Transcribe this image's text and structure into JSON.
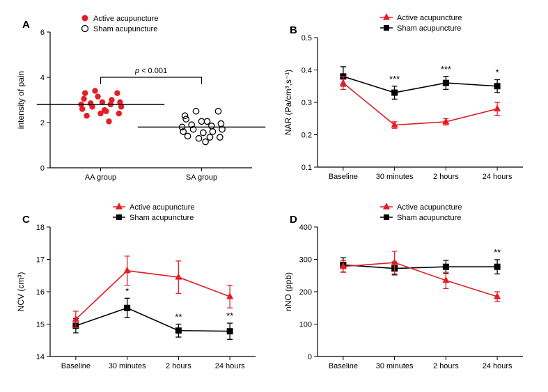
{
  "colors": {
    "active": "#e31e24",
    "sham": "#000000",
    "bg": "#ffffff"
  },
  "legend": {
    "active": "Active acupuncture",
    "sham": "Sham acupuncture"
  },
  "panelA": {
    "label": "A",
    "ylabel": "intensity of pain",
    "ylim": [
      0,
      6
    ],
    "ystep": 2,
    "categories": [
      "AA group",
      "SA group"
    ],
    "sig_text": "p < 0.001",
    "mean_active": 2.8,
    "mean_sham": 1.8,
    "points_active": [
      {
        "x": -0.3,
        "y": 3.05
      },
      {
        "x": -0.1,
        "y": 3.4
      },
      {
        "x": 0.1,
        "y": 2.5
      },
      {
        "x": 0.3,
        "y": 3.3
      },
      {
        "x": -0.35,
        "y": 2.8
      },
      {
        "x": -0.18,
        "y": 2.85
      },
      {
        "x": 0.0,
        "y": 2.4
      },
      {
        "x": 0.18,
        "y": 2.8
      },
      {
        "x": 0.35,
        "y": 2.9
      },
      {
        "x": -0.33,
        "y": 2.6
      },
      {
        "x": -0.15,
        "y": 2.7
      },
      {
        "x": 0.03,
        "y": 2.9
      },
      {
        "x": 0.2,
        "y": 3.0
      },
      {
        "x": 0.37,
        "y": 2.7
      },
      {
        "x": -0.25,
        "y": 2.3
      },
      {
        "x": -0.05,
        "y": 3.15
      },
      {
        "x": 0.15,
        "y": 2.05
      },
      {
        "x": 0.33,
        "y": 2.4
      },
      {
        "x": -0.28,
        "y": 3.3
      },
      {
        "x": 0.07,
        "y": 2.55
      }
    ],
    "points_sham": [
      {
        "x": -0.3,
        "y": 2.3
      },
      {
        "x": -0.1,
        "y": 2.5
      },
      {
        "x": 0.1,
        "y": 2.05
      },
      {
        "x": 0.3,
        "y": 2.5
      },
      {
        "x": -0.35,
        "y": 1.8
      },
      {
        "x": -0.18,
        "y": 1.9
      },
      {
        "x": 0.0,
        "y": 2.05
      },
      {
        "x": 0.18,
        "y": 1.85
      },
      {
        "x": 0.35,
        "y": 1.95
      },
      {
        "x": -0.33,
        "y": 1.6
      },
      {
        "x": -0.15,
        "y": 1.7
      },
      {
        "x": 0.03,
        "y": 1.55
      },
      {
        "x": 0.2,
        "y": 1.6
      },
      {
        "x": 0.37,
        "y": 1.7
      },
      {
        "x": -0.25,
        "y": 1.4
      },
      {
        "x": -0.05,
        "y": 1.3
      },
      {
        "x": 0.15,
        "y": 1.35
      },
      {
        "x": 0.33,
        "y": 1.35
      },
      {
        "x": -0.28,
        "y": 2.15
      },
      {
        "x": 0.07,
        "y": 1.15
      }
    ]
  },
  "panelB": {
    "label": "B",
    "ylabel": "NAR  (Pa/cm³,s⁻¹)",
    "ylim": [
      0.1,
      0.5
    ],
    "ystep": 0.1,
    "xcats": [
      "Baseline",
      "30 minutes",
      "2 hours",
      "24 hours"
    ],
    "active": {
      "y": [
        0.36,
        0.23,
        0.24,
        0.28
      ],
      "err": [
        0.02,
        0.01,
        0.01,
        0.02
      ]
    },
    "sham": {
      "y": [
        0.38,
        0.33,
        0.36,
        0.35
      ],
      "err": [
        0.03,
        0.02,
        0.02,
        0.02
      ]
    },
    "sig": {
      "1": "***",
      "2": "***",
      "3": "*"
    }
  },
  "panelC": {
    "label": "C",
    "ylabel": "NCV (cm³)",
    "ylim": [
      14,
      18
    ],
    "ystep": 1,
    "xcats": [
      "Baseline",
      "30 minutes",
      "2 hours",
      "24 hours"
    ],
    "active": {
      "y": [
        15.15,
        16.65,
        16.45,
        15.85
      ],
      "err": [
        0.25,
        0.45,
        0.5,
        0.35
      ]
    },
    "sham": {
      "y": [
        14.95,
        15.5,
        14.8,
        14.78
      ],
      "err": [
        0.22,
        0.3,
        0.2,
        0.25
      ]
    },
    "sig": {
      "1": "*",
      "2": "**",
      "3": "**"
    }
  },
  "panelD": {
    "label": "D",
    "ylabel": "nNO (ppb)",
    "ylim": [
      0,
      400
    ],
    "ystep": 100,
    "xcats": [
      "Baseline",
      "30 minutes",
      "2 hours",
      "24 hours"
    ],
    "active": {
      "y": [
        278,
        290,
        235,
        185
      ],
      "err": [
        18,
        35,
        25,
        15
      ]
    },
    "sham": {
      "y": [
        283,
        272,
        277,
        277
      ],
      "err": [
        22,
        20,
        20,
        22
      ]
    },
    "sig": {
      "3": "**"
    }
  }
}
